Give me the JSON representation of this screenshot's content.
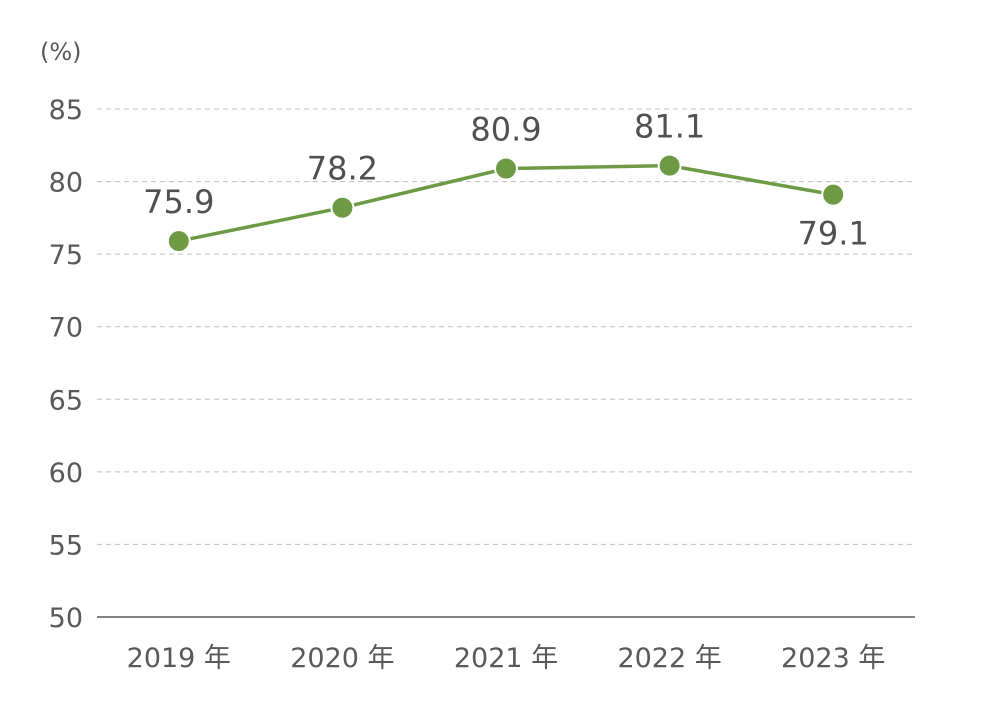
{
  "chart_data": {
    "type": "line",
    "ylabel": "(%)",
    "ylim": [
      50,
      85
    ],
    "yticks": [
      "50",
      "55",
      "60",
      "65",
      "70",
      "75",
      "80",
      "85"
    ],
    "categories": [
      "2019 年",
      "2020 年",
      "2021 年",
      "2022 年",
      "2023 年"
    ],
    "values": [
      75.9,
      78.2,
      80.9,
      81.1,
      79.1
    ],
    "data_labels": [
      "75.9",
      "78.2",
      "80.9",
      "81.1",
      "79.1"
    ],
    "grid": "horizontal dashed",
    "colors": {
      "series": "#6e9a45",
      "grid": "#bfbfbf",
      "axis": "#595959"
    }
  }
}
